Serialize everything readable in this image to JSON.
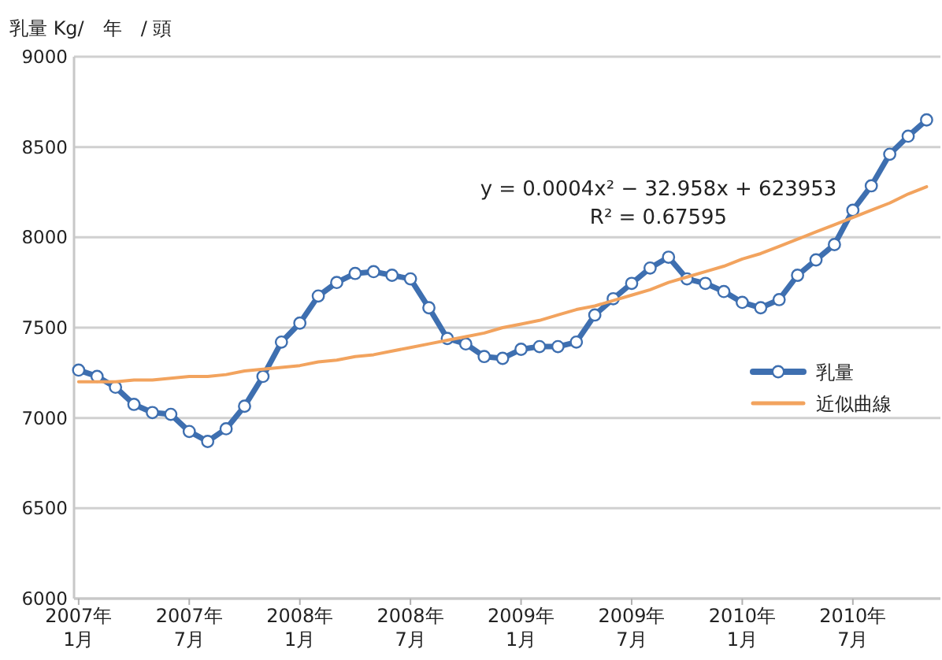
{
  "chart_data": {
    "type": "line",
    "ylabel": "乳量 Kg/　年　/ 頭",
    "categories": [
      "2007年\n1月",
      null,
      null,
      null,
      null,
      null,
      "2007年\n7月",
      null,
      null,
      null,
      null,
      null,
      "2008年\n1月",
      null,
      null,
      null,
      null,
      null,
      "2008年\n7月",
      null,
      null,
      null,
      null,
      null,
      "2009年\n1月",
      null,
      null,
      null,
      null,
      null,
      "2009年\n7月",
      null,
      null,
      null,
      null,
      null,
      "2010年\n1月",
      null,
      null,
      null,
      null,
      null,
      "2010年\n7月",
      null,
      null,
      null,
      null
    ],
    "series": [
      {
        "name": "乳量",
        "color": "#3e6fb0",
        "marker": "circle",
        "values": [
          7265,
          7230,
          7170,
          7075,
          7030,
          7020,
          6925,
          6870,
          6940,
          7065,
          7230,
          7420,
          7525,
          7675,
          7750,
          7800,
          7810,
          7790,
          7770,
          7610,
          7440,
          7410,
          7340,
          7330,
          7380,
          7395,
          7395,
          7420,
          7570,
          7660,
          7745,
          7830,
          7890,
          7770,
          7745,
          7700,
          7640,
          7610,
          7655,
          7790,
          7875,
          7960,
          8150,
          8285,
          8460,
          8560,
          8650
        ]
      },
      {
        "name": "近似曲線",
        "type": "line",
        "color": "#f2a35e",
        "marker": "none",
        "values": [
          7200,
          7200,
          7200,
          7210,
          7210,
          7220,
          7230,
          7230,
          7240,
          7260,
          7270,
          7280,
          7290,
          7310,
          7320,
          7340,
          7350,
          7370,
          7390,
          7410,
          7430,
          7450,
          7470,
          7500,
          7520,
          7540,
          7570,
          7600,
          7620,
          7650,
          7680,
          7710,
          7750,
          7780,
          7810,
          7840,
          7880,
          7910,
          7950,
          7990,
          8030,
          8070,
          8110,
          8150,
          8190,
          8240,
          8280
        ]
      }
    ],
    "ylim": [
      6000,
      9000
    ],
    "yticks": [
      6000,
      6500,
      7000,
      7500,
      8000,
      8500,
      9000
    ],
    "grid": "y",
    "legend": "right",
    "annotations": [
      "y = 0.0004x² − 32.958x + 623953",
      "R² = 0.67595"
    ]
  }
}
